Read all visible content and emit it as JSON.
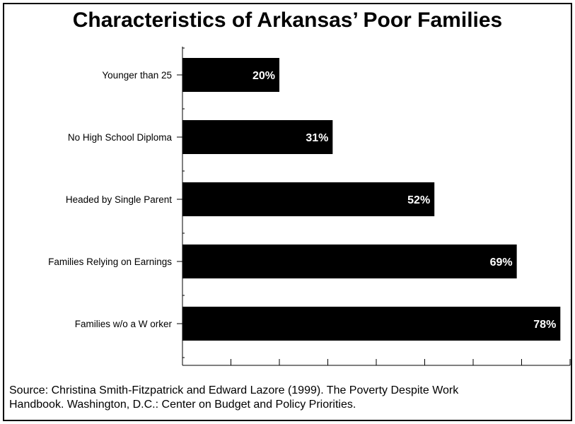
{
  "chart_data": {
    "type": "bar",
    "orientation": "horizontal",
    "title": "Characteristics of Arkansas’ Poor Families",
    "categories": [
      "Younger than 25",
      "No High School Diploma",
      "Headed by Single Parent",
      "Families Relying on Earnings",
      "Families w/o a W orker"
    ],
    "values": [
      20,
      31,
      52,
      69,
      78
    ],
    "value_labels": [
      "20%",
      "31%",
      "52%",
      "69%",
      "78%"
    ],
    "xlim": [
      0,
      80
    ],
    "x_tick_count": 9,
    "bar_color": "#000000",
    "label_color": "#ffffff",
    "grid": false,
    "legend": "none"
  },
  "footer": {
    "source_line1": "Source: Christina Smith-Fitzpatrick and Edward Lazore (1999). The Poverty Despite Work",
    "source_line2": "Handbook. Washington, D.C.: Center on Budget and Policy Priorities."
  }
}
